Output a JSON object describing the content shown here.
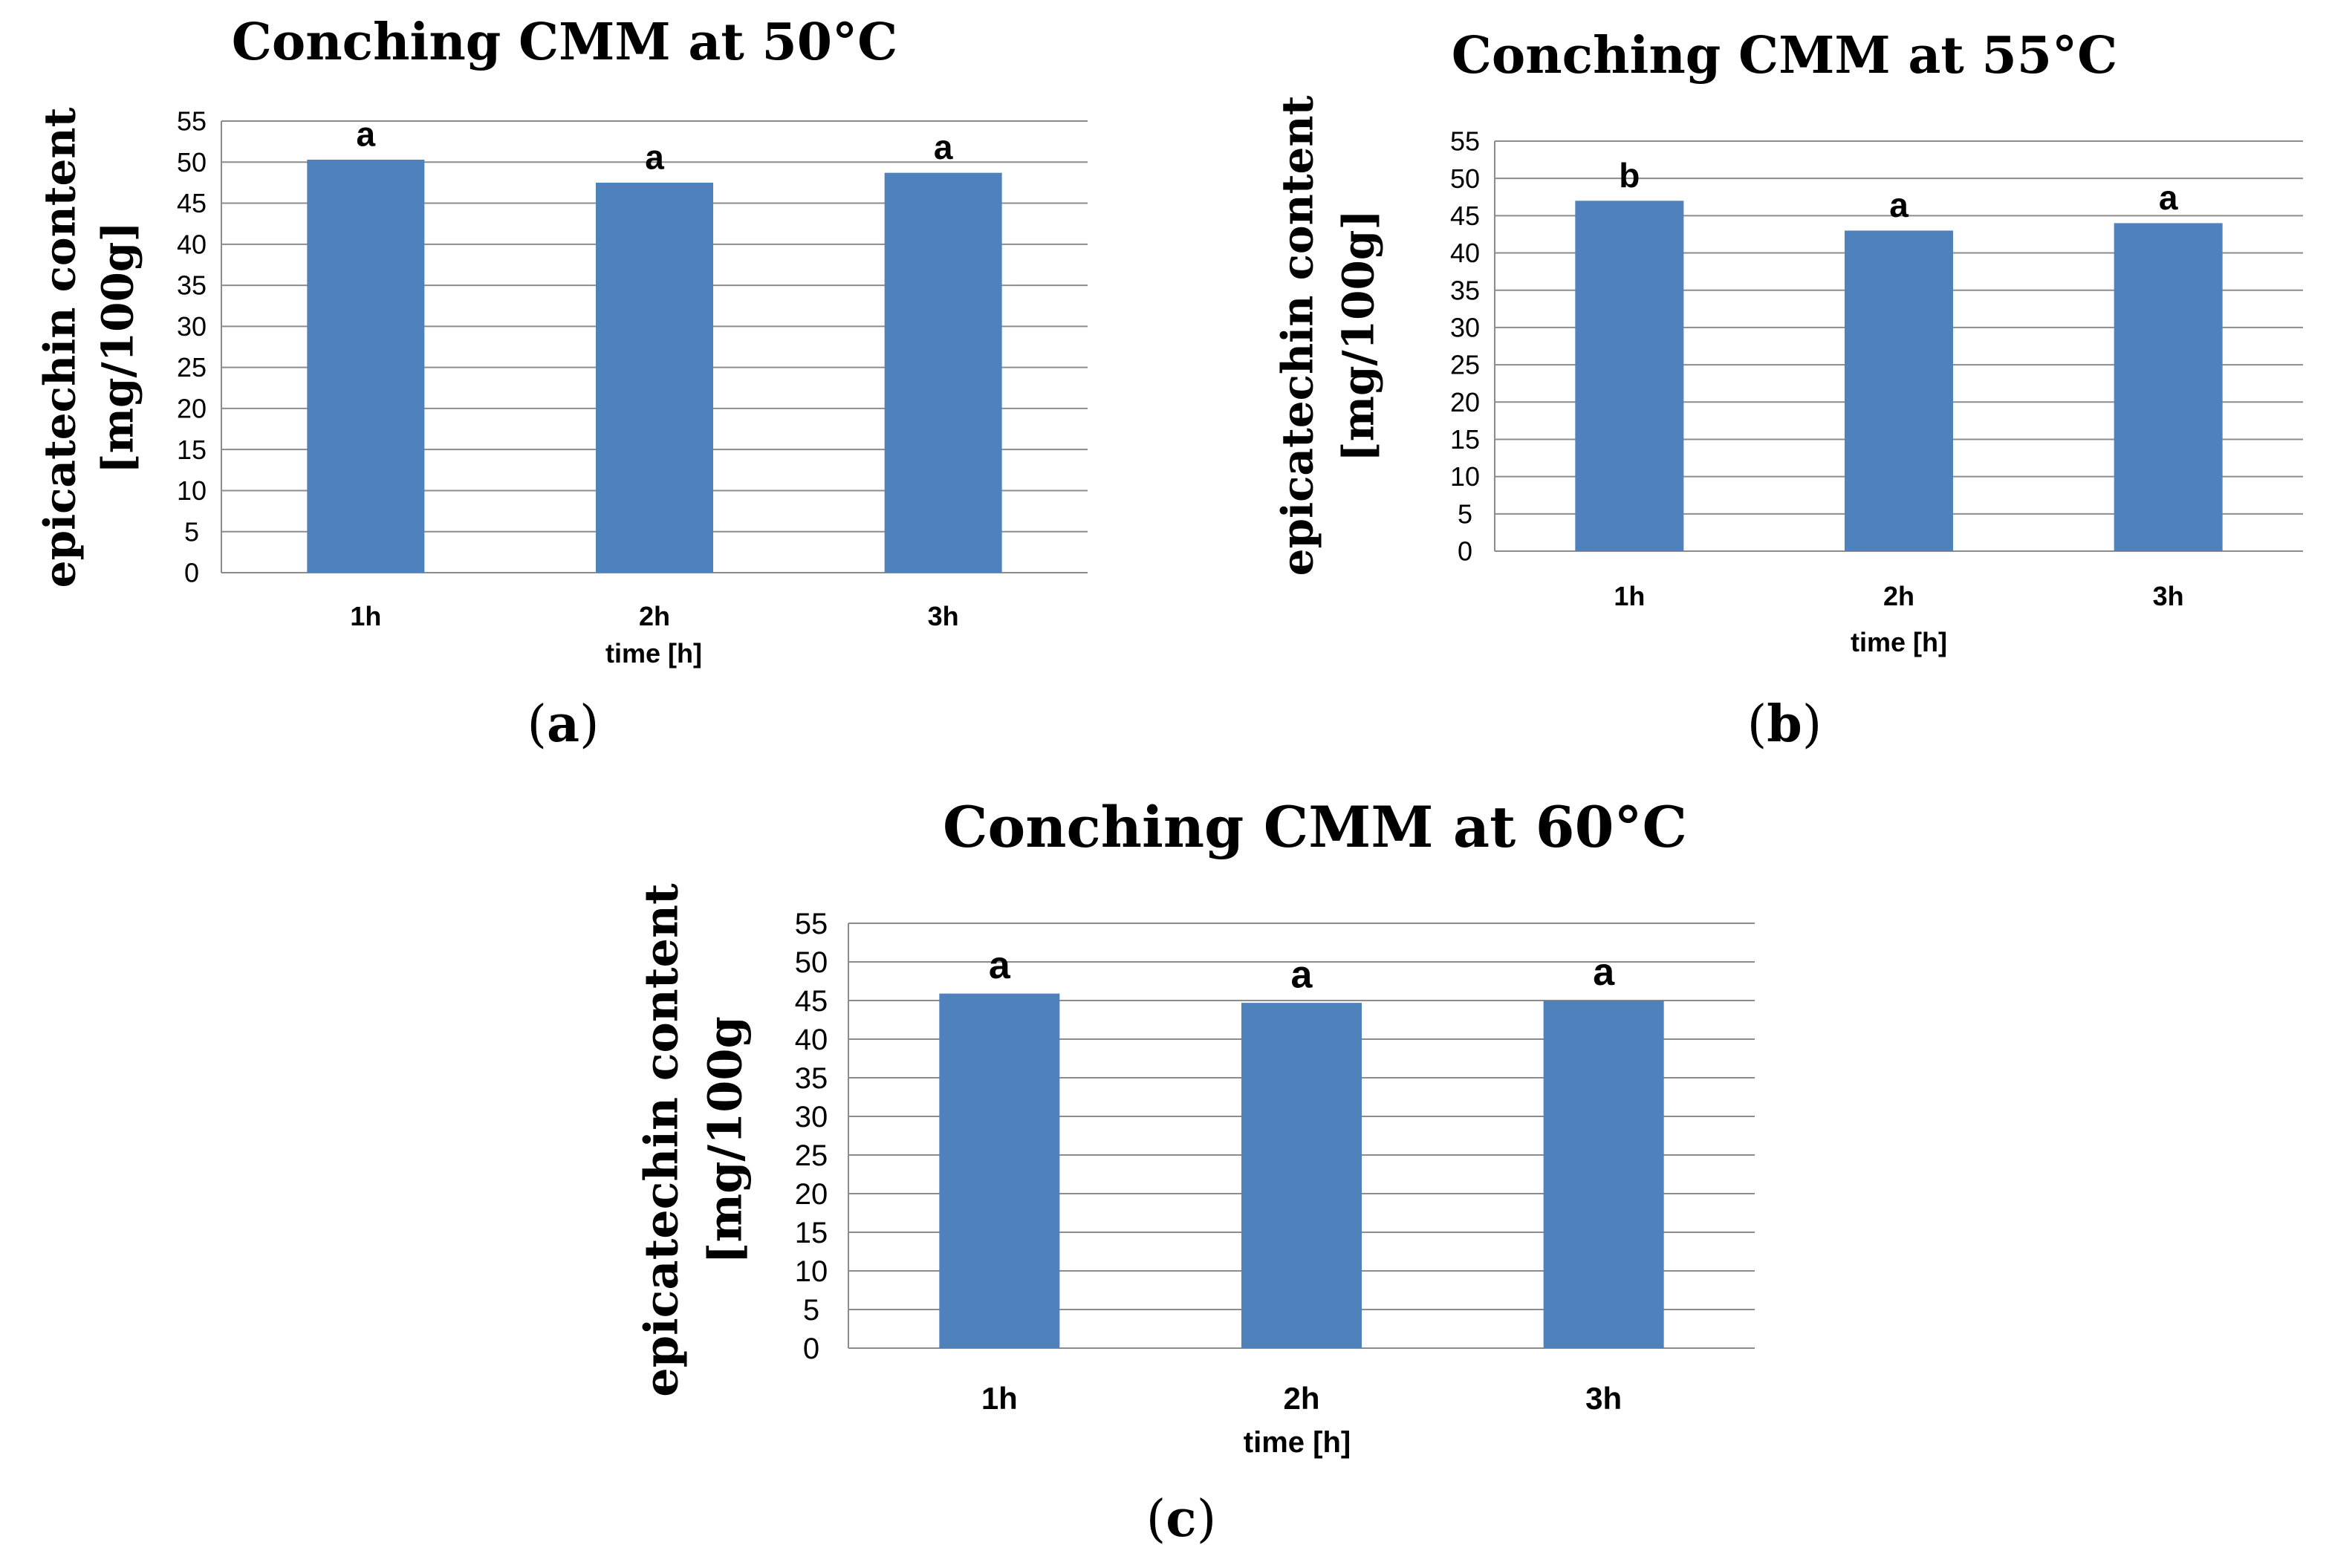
{
  "chart_data": [
    {
      "type": "bar",
      "title": "Conching CMM at 50°C",
      "ylabel_line1": "epicatechin content",
      "ylabel_line2": "[mg/100g]",
      "xlabel": "time [h]",
      "categories": [
        "1h",
        "2h",
        "3h"
      ],
      "values": [
        50.3,
        47.5,
        48.7
      ],
      "significance": [
        "a",
        "a",
        "a"
      ],
      "ylim": [
        0,
        55
      ],
      "yticks": [
        0,
        5,
        10,
        15,
        20,
        25,
        30,
        35,
        40,
        45,
        50,
        55
      ],
      "grid": true,
      "panel": "(a)"
    },
    {
      "type": "bar",
      "title": "Conching CMM at 55°C",
      "ylabel_line1": "epicatechin content",
      "ylabel_line2": "[mg/100g]",
      "xlabel": "time [h]",
      "categories": [
        "1h",
        "2h",
        "3h"
      ],
      "values": [
        47.0,
        43.0,
        44.0
      ],
      "significance": [
        "b",
        "a",
        "a"
      ],
      "ylim": [
        0,
        55
      ],
      "yticks": [
        0,
        5,
        10,
        15,
        20,
        25,
        30,
        35,
        40,
        45,
        50,
        55
      ],
      "grid": true,
      "panel": "(b)"
    },
    {
      "type": "bar",
      "title": "Conching CMM at 60°C",
      "ylabel_line1": "epicatechin content",
      "ylabel_line2": "[mg/100g",
      "xlabel": "time [h]",
      "categories": [
        "1h",
        "2h",
        "3h"
      ],
      "values": [
        45.9,
        44.7,
        45.0
      ],
      "significance": [
        "a",
        "a",
        "a"
      ],
      "ylim": [
        0,
        55
      ],
      "yticks": [
        0,
        5,
        10,
        15,
        20,
        25,
        30,
        35,
        40,
        45,
        50,
        55
      ],
      "grid": true,
      "panel": "(c)"
    }
  ],
  "colors": {
    "bar": "#4f81bd",
    "grid": "#8c8c8c"
  }
}
